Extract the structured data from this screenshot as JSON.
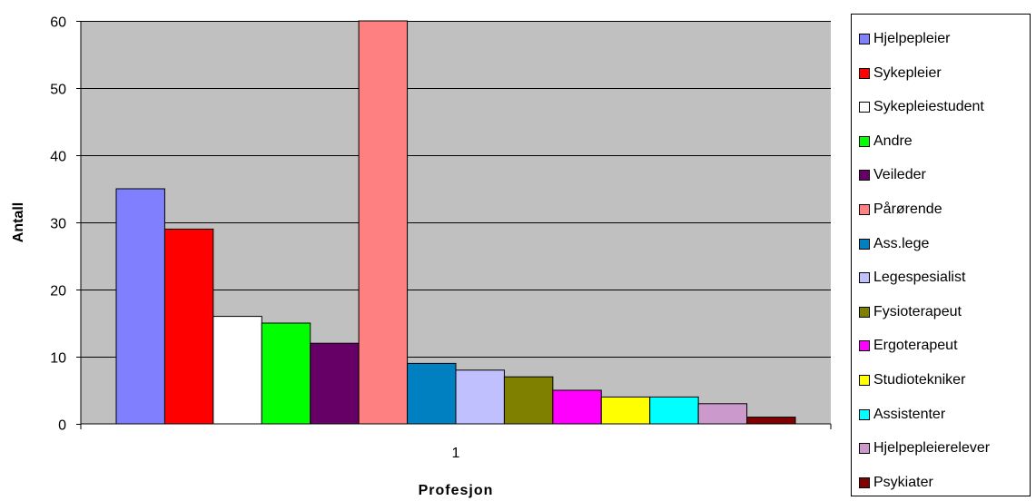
{
  "chart_data": {
    "type": "bar",
    "categories": [
      "1"
    ],
    "xlabel": "Profesjon",
    "ylabel": "Antall",
    "ylim": [
      0,
      60
    ],
    "yticks": [
      0,
      10,
      20,
      30,
      40,
      50,
      60
    ],
    "grid": true,
    "plot_background": "#C0C0C0",
    "legend_position": "right",
    "series": [
      {
        "name": "Hjelpepleier",
        "values": [
          35
        ],
        "color": "#8080FF"
      },
      {
        "name": "Sykepleier",
        "values": [
          29
        ],
        "color": "#FF0000"
      },
      {
        "name": "Sykepleiestudent",
        "values": [
          16
        ],
        "color": "#FFFFFF"
      },
      {
        "name": "Andre",
        "values": [
          15
        ],
        "color": "#00FF00"
      },
      {
        "name": "Veileder",
        "values": [
          12
        ],
        "color": "#660066"
      },
      {
        "name": "Pårørende",
        "values": [
          60
        ],
        "color": "#FF8080"
      },
      {
        "name": "Ass.lege",
        "values": [
          9
        ],
        "color": "#0080C0"
      },
      {
        "name": "Legespesialist",
        "values": [
          8
        ],
        "color": "#C0C0FF"
      },
      {
        "name": "Fysioterapeut",
        "values": [
          7
        ],
        "color": "#808000"
      },
      {
        "name": "Ergoterapeut",
        "values": [
          5
        ],
        "color": "#FF00FF"
      },
      {
        "name": "Studiotekniker",
        "values": [
          4
        ],
        "color": "#FFFF00"
      },
      {
        "name": "Assistenter",
        "values": [
          4
        ],
        "color": "#00FFFF"
      },
      {
        "name": "Hjelpepleierelever",
        "values": [
          3
        ],
        "color": "#CC99CC"
      },
      {
        "name": "Psykiater",
        "values": [
          1
        ],
        "color": "#800000"
      }
    ]
  }
}
